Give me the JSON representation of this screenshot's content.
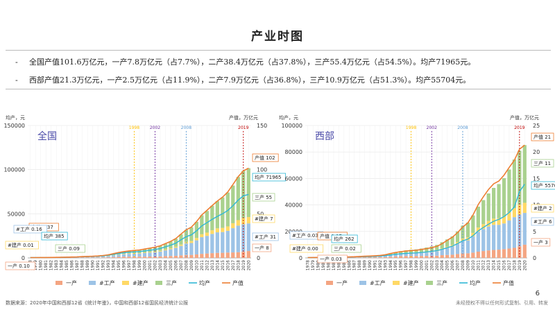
{
  "title": "产业时图",
  "summary": [
    {
      "dash": "-",
      "text": "全国产值101.6万亿元，一产7.8万亿元（占7.7%），二产38.4万亿元（占37.8%），三产55.4万亿元（占54.5%）。均产71965元。"
    },
    {
      "dash": "-",
      "text": "西部产值21.3万亿元，一产2.5万亿元（占11.9%），二产7.9万亿元（占36.8%），三产10.9万亿元（占51.3%）。均产55704元。"
    }
  ],
  "footer": {
    "source": "数据来源：2020年中国和西部12省《统计年鉴》，中国和西部12省国民经济统计公报",
    "copyright": "未经授权不得以任何形式复制、引用、转发",
    "page": "6"
  },
  "colors": {
    "primary": "#f4a582",
    "industry": "#9dc3e6",
    "construction": "#ffd966",
    "tertiary": "#a9d18e",
    "percap": "#2eb7d6",
    "output": "#ed7d31"
  },
  "chart_data": [
    {
      "type": "bar",
      "title": "全国",
      "ylabel_left": "均产，元",
      "ylabel_right": "产值，万亿元",
      "ylim_left": [
        0,
        150000
      ],
      "ylim_right": [
        0,
        150
      ],
      "left_ticks": [
        "0",
        "50000",
        "100000",
        "150000"
      ],
      "right_ticks": [
        "0",
        "10",
        "50",
        "100",
        "150"
      ],
      "right_tick_values": [
        0,
        10,
        50,
        100,
        150
      ],
      "grid": true,
      "categories": [
        "1978",
        "1979",
        "1980",
        "1981",
        "1982",
        "1983",
        "1984",
        "1985",
        "1986",
        "1987",
        "1988",
        "1989",
        "1990",
        "1991",
        "1992",
        "1993",
        "1994",
        "1995",
        "1996",
        "1997",
        "1998",
        "1999",
        "2000",
        "2001",
        "2002",
        "2003",
        "2004",
        "2005",
        "2006",
        "2007",
        "2008",
        "2009",
        "2010",
        "2011",
        "2012",
        "2013",
        "2014",
        "2015",
        "2016",
        "2017",
        "2018",
        "2019",
        "2020"
      ],
      "markers": [
        {
          "label": "1998",
          "x": "1998",
          "color": "#ffc000"
        },
        {
          "label": "2002",
          "x": "2002",
          "color": "#7030a0"
        },
        {
          "label": "2008",
          "x": "2008",
          "color": "#5b9bd5"
        },
        {
          "label": "2019",
          "x": "2019",
          "color": "#c00000"
        }
      ],
      "series": [
        {
          "name": "一产",
          "key": "primary",
          "values": [
            0.1,
            0.13,
            0.14,
            0.16,
            0.18,
            0.2,
            0.23,
            0.26,
            0.28,
            0.32,
            0.38,
            0.42,
            0.5,
            0.53,
            0.58,
            0.69,
            0.95,
            1.2,
            1.39,
            1.44,
            1.48,
            1.48,
            1.49,
            1.56,
            1.62,
            1.7,
            2.1,
            2.2,
            2.4,
            2.9,
            3.3,
            3.4,
            3.9,
            4.6,
            5.0,
            5.4,
            5.7,
            5.8,
            6.1,
            6.2,
            6.5,
            7.0,
            7.8
          ]
        },
        {
          "name": "#工产",
          "key": "industry",
          "values": [
            0.16,
            0.18,
            0.2,
            0.21,
            0.22,
            0.24,
            0.28,
            0.34,
            0.4,
            0.46,
            0.58,
            0.65,
            0.69,
            0.81,
            1.01,
            1.42,
            1.85,
            2.34,
            2.8,
            3.15,
            3.32,
            3.5,
            4.0,
            4.4,
            4.8,
            5.5,
            6.5,
            7.7,
            9.1,
            10.7,
            13.0,
            13.5,
            16.0,
            18.9,
            20.0,
            21.8,
            23.3,
            23.5,
            24.6,
            27.5,
            30.1,
            31.1,
            31.3
          ]
        },
        {
          "name": "#建产",
          "key": "construction",
          "values": [
            0.01,
            0.01,
            0.02,
            0.02,
            0.02,
            0.03,
            0.04,
            0.04,
            0.05,
            0.06,
            0.07,
            0.08,
            0.09,
            0.1,
            0.13,
            0.19,
            0.25,
            0.32,
            0.38,
            0.41,
            0.46,
            0.48,
            0.53,
            0.59,
            0.66,
            0.79,
            0.93,
            1.04,
            1.21,
            1.52,
            1.85,
            2.26,
            2.71,
            3.27,
            3.69,
            4.09,
            4.5,
            4.7,
            5.0,
            5.6,
            6.2,
            7.0,
            7.2
          ]
        },
        {
          "name": "三产",
          "key": "tertiary",
          "values": [
            0.09,
            0.1,
            0.11,
            0.12,
            0.14,
            0.16,
            0.2,
            0.25,
            0.3,
            0.36,
            0.45,
            0.54,
            0.58,
            0.72,
            0.92,
            1.19,
            1.59,
            2.0,
            2.34,
            2.69,
            3.06,
            3.39,
            3.9,
            4.48,
            4.98,
            5.5,
            6.4,
            7.7,
            9.1,
            11.6,
            13.6,
            15.5,
            18.2,
            21.6,
            24.5,
            27.8,
            30.8,
            34.6,
            38.4,
            42.7,
            48.9,
            53.5,
            55.4
          ]
        },
        {
          "name": "均产",
          "key": "percap",
          "axis": "left",
          "values": [
            385,
            423,
            468,
            497,
            533,
            588,
            702,
            866,
            973,
            1123,
            1378,
            1536,
            1663,
            1912,
            2334,
            3027,
            4081,
            5091,
            5898,
            6481,
            6860,
            7229,
            7942,
            8717,
            9506,
            10666,
            12487,
            14368,
            16738,
            20494,
            24100,
            26180,
            30808,
            36302,
            39874,
            43684,
            47005,
            50028,
            53680,
            59201,
            65534,
            70328,
            71965
          ]
        },
        {
          "name": "产值",
          "key": "output",
          "axis": "right",
          "values": [
            0.37,
            0.41,
            0.46,
            0.49,
            0.54,
            0.6,
            0.72,
            0.9,
            1.03,
            1.21,
            1.5,
            1.7,
            1.87,
            2.19,
            2.72,
            3.57,
            4.86,
            6.13,
            7.18,
            7.97,
            8.52,
            9.06,
            10.03,
            11.09,
            12.17,
            13.74,
            16.18,
            18.73,
            21.94,
            27.01,
            31.92,
            34.85,
            41.21,
            48.79,
            53.86,
            59.3,
            64.36,
            68.89,
            74.64,
            83.2,
            91.93,
            98.65,
            101.6
          ]
        }
      ],
      "annotations": [
        {
          "text": "产值 102",
          "color": "#ed7d31"
        },
        {
          "text": "均产 71965",
          "color": "#2eb7d6"
        },
        {
          "text": "三产 55",
          "color": "#a9d18e"
        },
        {
          "text": "#建产 7",
          "color": "#ffd966"
        },
        {
          "text": "#工产 31",
          "color": "#9dc3e6"
        },
        {
          "text": "一产 8",
          "color": "#f4a582"
        },
        {
          "text": "产值 0.37",
          "color": "#ed7d31"
        },
        {
          "text": "#工产 0.16",
          "color": "#9dc3e6"
        },
        {
          "text": "均产 385",
          "color": "#2eb7d6"
        },
        {
          "text": "#建产 0.01",
          "color": "#ffd966"
        },
        {
          "text": "三产 0.09",
          "color": "#a9d18e"
        },
        {
          "text": "一产 0.10",
          "color": "#f4a582"
        }
      ],
      "legend": [
        "一产",
        "#工产",
        "#建产",
        "三产",
        "均产",
        "产值"
      ],
      "legend_position": "bottom"
    },
    {
      "type": "bar",
      "title": "西部",
      "ylabel_left": "均产，元",
      "ylabel_right": "产值，万亿元",
      "ylim_left": [
        0,
        100000
      ],
      "ylim_right": [
        0,
        25
      ],
      "left_ticks": [
        "0",
        "20000",
        "40000",
        "60000",
        "80000",
        "100000"
      ],
      "right_ticks": [
        "0",
        "3",
        "5",
        "10",
        "15",
        "20",
        "25"
      ],
      "right_tick_values": [
        0,
        3,
        5,
        10,
        15,
        20,
        25
      ],
      "grid": true,
      "categories": [
        "1978",
        "1979",
        "1980",
        "1981",
        "1982",
        "1983",
        "1984",
        "1985",
        "1986",
        "1987",
        "1988",
        "1989",
        "1990",
        "1991",
        "1992",
        "1993",
        "1994",
        "1995",
        "1996",
        "1997",
        "1998",
        "1999",
        "2000",
        "2001",
        "2002",
        "2003",
        "2004",
        "2005",
        "2006",
        "2007",
        "2008",
        "2009",
        "2010",
        "2011",
        "2012",
        "2013",
        "2014",
        "2015",
        "2016",
        "2017",
        "2018",
        "2019",
        "2020"
      ],
      "markers": [
        {
          "label": "1998",
          "x": "1998",
          "color": "#ffc000"
        },
        {
          "label": "2002",
          "x": "2002",
          "color": "#7030a0"
        },
        {
          "label": "2008",
          "x": "2008",
          "color": "#5b9bd5"
        },
        {
          "label": "2019",
          "x": "2019",
          "color": "#c00000"
        }
      ],
      "series": [
        {
          "name": "一产",
          "key": "primary",
          "values": [
            0.03,
            0.03,
            0.04,
            0.04,
            0.05,
            0.05,
            0.06,
            0.07,
            0.07,
            0.08,
            0.1,
            0.11,
            0.13,
            0.14,
            0.15,
            0.17,
            0.23,
            0.29,
            0.34,
            0.36,
            0.37,
            0.37,
            0.37,
            0.38,
            0.4,
            0.42,
            0.52,
            0.56,
            0.6,
            0.73,
            0.85,
            0.87,
            1.0,
            1.18,
            1.3,
            1.42,
            1.5,
            1.56,
            1.66,
            1.77,
            1.9,
            2.2,
            2.5
          ]
        },
        {
          "name": "#工产",
          "key": "industry",
          "values": [
            0.03,
            0.03,
            0.04,
            0.04,
            0.04,
            0.05,
            0.05,
            0.06,
            0.07,
            0.08,
            0.1,
            0.11,
            0.12,
            0.13,
            0.16,
            0.22,
            0.29,
            0.36,
            0.42,
            0.47,
            0.5,
            0.52,
            0.58,
            0.64,
            0.72,
            0.85,
            1.05,
            1.3,
            1.55,
            1.9,
            2.35,
            2.45,
            3.05,
            3.75,
            4.15,
            4.5,
            4.75,
            4.7,
            4.85,
            5.3,
            5.8,
            6.0,
            6.0
          ]
        },
        {
          "name": "#建产",
          "key": "construction",
          "values": [
            0.0,
            0.0,
            0.0,
            0.0,
            0.0,
            0.01,
            0.01,
            0.01,
            0.01,
            0.01,
            0.02,
            0.02,
            0.02,
            0.02,
            0.03,
            0.04,
            0.05,
            0.07,
            0.08,
            0.09,
            0.1,
            0.11,
            0.12,
            0.14,
            0.16,
            0.19,
            0.22,
            0.25,
            0.29,
            0.36,
            0.45,
            0.56,
            0.67,
            0.8,
            0.92,
            1.05,
            1.17,
            1.23,
            1.35,
            1.52,
            1.68,
            1.85,
            1.9
          ]
        },
        {
          "name": "三产",
          "key": "tertiary",
          "values": [
            0.02,
            0.02,
            0.02,
            0.03,
            0.03,
            0.03,
            0.04,
            0.05,
            0.06,
            0.07,
            0.09,
            0.1,
            0.12,
            0.14,
            0.17,
            0.22,
            0.29,
            0.37,
            0.44,
            0.5,
            0.57,
            0.62,
            0.7,
            0.8,
            0.9,
            1.0,
            1.17,
            1.38,
            1.62,
            2.02,
            2.45,
            2.8,
            3.3,
            3.95,
            4.55,
            5.2,
            5.8,
            6.45,
            7.2,
            8.1,
            9.2,
            10.2,
            10.9
          ]
        },
        {
          "name": "均产",
          "key": "percap",
          "axis": "left",
          "values": [
            262,
            285,
            312,
            330,
            352,
            388,
            456,
            561,
            620,
            710,
            871,
            962,
            1070,
            1210,
            1410,
            1720,
            2180,
            2710,
            3100,
            3400,
            3600,
            3780,
            4100,
            4500,
            4920,
            5520,
            6510,
            7700,
            8900,
            10800,
            12900,
            14200,
            16800,
            20400,
            23000,
            25500,
            27700,
            29100,
            31200,
            34300,
            38500,
            50000,
            55704
          ]
        },
        {
          "name": "产值",
          "key": "output",
          "axis": "right",
          "values": [
            0.07,
            0.08,
            0.09,
            0.1,
            0.11,
            0.12,
            0.14,
            0.17,
            0.19,
            0.22,
            0.28,
            0.31,
            0.35,
            0.4,
            0.47,
            0.6,
            0.82,
            1.02,
            1.18,
            1.3,
            1.39,
            1.45,
            1.6,
            1.75,
            1.94,
            2.18,
            2.68,
            3.33,
            3.91,
            4.77,
            5.82,
            6.62,
            8.14,
            10.07,
            11.54,
            12.93,
            13.99,
            14.52,
            15.63,
            17.09,
            18.43,
            20.52,
            21.3
          ]
        }
      ],
      "annotations": [
        {
          "text": "产值 21",
          "color": "#ed7d31"
        },
        {
          "text": "三产 11",
          "color": "#a9d18e"
        },
        {
          "text": "均产 55704",
          "color": "#2eb7d6"
        },
        {
          "text": "#建产 2",
          "color": "#ffd966"
        },
        {
          "text": "#工产 6",
          "color": "#9dc3e6"
        },
        {
          "text": "一产 3",
          "color": "#f4a582"
        },
        {
          "text": "#工产 0.03",
          "color": "#9dc3e6"
        },
        {
          "text": "#建产 0.00",
          "color": "#ffd966"
        },
        {
          "text": "产值 0.07",
          "color": "#ed7d31"
        },
        {
          "text": "均产 262",
          "color": "#2eb7d6"
        },
        {
          "text": "三产 0.02",
          "color": "#a9d18e"
        },
        {
          "text": "一产 0.03",
          "color": "#f4a582"
        }
      ],
      "legend": [
        "一产",
        "#工产",
        "#建产",
        "三产",
        "均产",
        "产值"
      ],
      "legend_position": "bottom"
    }
  ]
}
